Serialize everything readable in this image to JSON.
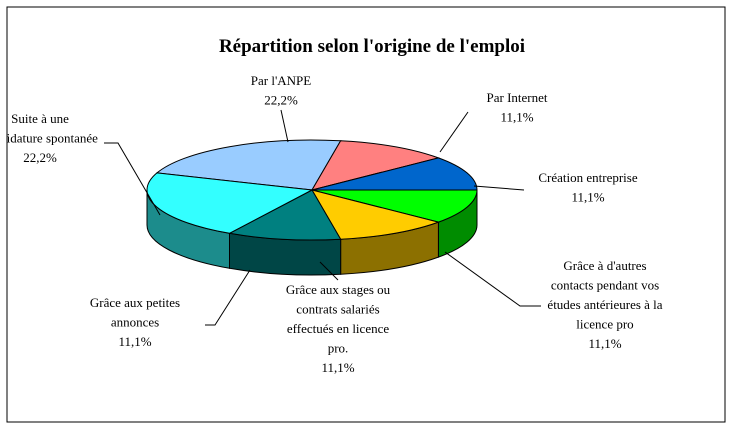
{
  "chart_data": {
    "type": "pie3d",
    "title": "Répartition selon l'origine de l'emploi",
    "categories": [
      "Par l'ANPE",
      "Par Internet",
      "Création entreprise",
      "Grâce à d'autres\ncontacts pendant vos\nétudes antérieures à la\nlicence pro",
      "Grâce aux stages ou\ncontrats salariés\neffectués en licence\npro.",
      "Grâce aux petites\nannonces",
      "Suite à une\ncandidature spontanée"
    ],
    "values": [
      22.2,
      11.1,
      11.1,
      11.1,
      11.1,
      11.1,
      22.2
    ],
    "value_labels": [
      "22,2%",
      "11,1%",
      "11,1%",
      "11,1%",
      "11,1%",
      "11,1%",
      "22,2%"
    ],
    "colors": [
      "#99ccff",
      "#ff8080",
      "#0066cc",
      "#00ff00",
      "#ffcc00",
      "#008080",
      "#33ffff"
    ]
  }
}
